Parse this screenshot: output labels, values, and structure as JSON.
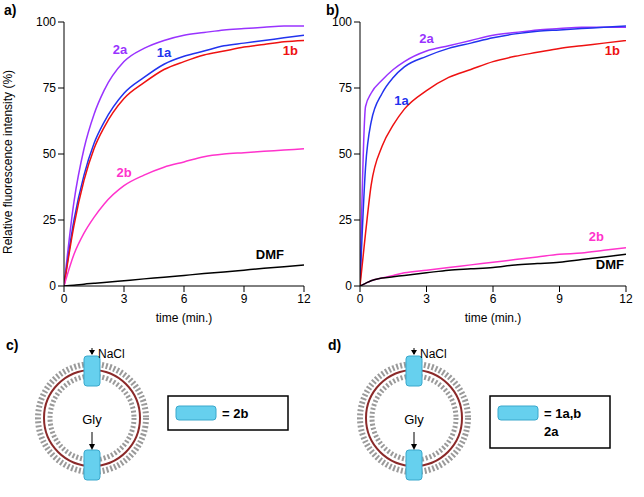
{
  "chart_data": [
    {
      "type": "line",
      "panel": "a)",
      "ylabel": "Relative fluorescence intensity (%)",
      "xlabel": "time (min.)",
      "x": [
        0,
        0.5,
        1,
        1.5,
        2,
        3,
        4,
        5,
        6,
        7,
        8,
        9,
        10,
        11,
        12
      ],
      "xlim": [
        0,
        12
      ],
      "xticks": [
        0,
        3,
        6,
        9,
        12
      ],
      "ylim": [
        0,
        100
      ],
      "yticks": [
        0,
        25,
        50,
        75,
        100
      ],
      "series": [
        {
          "name": "2a",
          "color": "#9933ff",
          "values": [
            0,
            32,
            52,
            65,
            74,
            85,
            90,
            93,
            95,
            96,
            97,
            97.5,
            98,
            98.5,
            98.5
          ]
        },
        {
          "name": "1a",
          "color": "#2233ee",
          "values": [
            0,
            25,
            42,
            54,
            62,
            73,
            79,
            84,
            87,
            89,
            91,
            92,
            93,
            94,
            95
          ]
        },
        {
          "name": "1b",
          "color": "#ee1111",
          "values": [
            0,
            23,
            40,
            52,
            60,
            71,
            77,
            82,
            85,
            87.5,
            89,
            90.5,
            91.5,
            92.5,
            93
          ]
        },
        {
          "name": "2b",
          "color": "#ff33cc",
          "values": [
            0,
            12,
            20,
            26,
            31,
            38,
            42,
            45,
            47,
            49,
            50,
            50.5,
            51,
            51.5,
            52
          ]
        },
        {
          "name": "DMF",
          "color": "#000000",
          "values": [
            0,
            0.3,
            0.7,
            1,
            1.3,
            2,
            2.7,
            3.3,
            4,
            4.7,
            5.3,
            6,
            6.7,
            7.3,
            8
          ]
        }
      ]
    },
    {
      "type": "line",
      "panel": "b)",
      "xlabel": "time (min.)",
      "x": [
        0,
        0.25,
        0.5,
        1,
        1.5,
        2,
        3,
        4,
        5,
        6,
        7,
        8,
        9,
        10,
        11,
        12
      ],
      "xlim": [
        0,
        12
      ],
      "xticks": [
        0,
        3,
        6,
        9,
        12
      ],
      "ylim": [
        0,
        100
      ],
      "yticks": [
        0,
        25,
        50,
        75,
        100
      ],
      "series": [
        {
          "name": "2a",
          "color": "#9933ff",
          "values": [
            0,
            68,
            73,
            78,
            82,
            85,
            89,
            91,
            93,
            95,
            96,
            97,
            97.5,
            98,
            98,
            98
          ]
        },
        {
          "name": "1a",
          "color": "#2233ee",
          "values": [
            0,
            45,
            62,
            73,
            79,
            83,
            87,
            90,
            92,
            94,
            95.5,
            96.5,
            97,
            97.5,
            98,
            98.5
          ]
        },
        {
          "name": "1b",
          "color": "#ee1111",
          "values": [
            0,
            20,
            38,
            53,
            61,
            67,
            74,
            79,
            82,
            85,
            87,
            88.5,
            90,
            91,
            92,
            93
          ]
        },
        {
          "name": "2b",
          "color": "#ff33cc",
          "values": [
            0,
            1,
            2,
            3,
            4,
            5,
            6,
            7,
            8,
            9,
            10,
            11,
            12,
            12.5,
            13.5,
            14.5
          ]
        },
        {
          "name": "DMF",
          "color": "#000000",
          "values": [
            0,
            1,
            2,
            3,
            3.5,
            4,
            5,
            6,
            6.5,
            7,
            8,
            8.5,
            9,
            10,
            11,
            12
          ]
        }
      ]
    }
  ],
  "diagrams": [
    {
      "panel": "c)",
      "ion": "NaCl",
      "inside": "Gly",
      "key": [
        "= 2b"
      ]
    },
    {
      "panel": "d)",
      "ion": "NaCl",
      "inside": "Gly",
      "key": [
        "= 1a,b",
        "2a"
      ]
    }
  ]
}
